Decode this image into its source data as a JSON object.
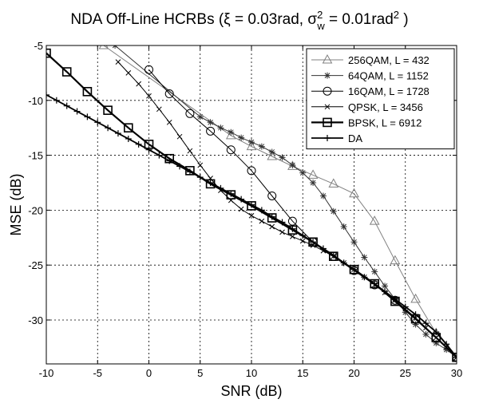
{
  "chart_data": {
    "type": "line",
    "title": {
      "main": "NDA Off-Line HCRBs (",
      "xi_symbol": "ξ",
      "xi_value": " = 0.03rad, ",
      "sigma_symbol": "σ",
      "sigma_sup": "2",
      "sigma_sub": "w",
      "sigma_value": " = 0.01rad",
      "unit_sup": "2",
      "close": " )"
    },
    "xlabel": "SNR (dB)",
    "ylabel": "MSE (dB)",
    "xlim": [
      -10,
      30
    ],
    "ylim": [
      -34,
      -5
    ],
    "xticks": [
      -10,
      -5,
      0,
      5,
      10,
      15,
      20,
      25,
      30
    ],
    "yticks": [
      -5,
      -10,
      -15,
      -20,
      -25,
      -30
    ],
    "grid": true,
    "legend_position": "top-right",
    "series": [
      {
        "name": "256QAM,  L = 432",
        "marker": "triangle",
        "color": "#808080",
        "x": [
          -4.4,
          8,
          10,
          12,
          14,
          16,
          18,
          20,
          22,
          24,
          26,
          28,
          30
        ],
        "y": [
          -5,
          -13.2,
          -14.2,
          -15.1,
          -16.0,
          -16.8,
          -17.6,
          -18.5,
          -21.0,
          -24.6,
          -28.1,
          -31.2,
          -33.4
        ]
      },
      {
        "name": "64QAM,  L = 1152",
        "marker": "star",
        "color": "#333333",
        "x": [
          -3.3,
          5,
          6,
          7,
          8,
          9,
          10,
          11,
          12,
          13,
          14,
          15,
          16,
          17,
          18,
          19,
          20,
          21,
          22,
          23,
          24,
          25,
          26,
          27,
          28,
          29,
          30
        ],
        "y": [
          -5,
          -11.5,
          -12.0,
          -12.5,
          -12.9,
          -13.4,
          -13.8,
          -14.2,
          -14.7,
          -15.2,
          -15.9,
          -16.6,
          -17.5,
          -18.7,
          -20.1,
          -21.5,
          -22.9,
          -24.3,
          -25.6,
          -26.9,
          -28.1,
          -29.3,
          -30.4,
          -31.3,
          -32.1,
          -32.7,
          -33.4
        ]
      },
      {
        "name": "16QAM,  L = 1728",
        "marker": "circle",
        "color": "#000000",
        "x": [
          0,
          2,
          4,
          6,
          8,
          10,
          12,
          14,
          16,
          18,
          20,
          22,
          24,
          26,
          28,
          30
        ],
        "y": [
          -7.2,
          -9.4,
          -11.2,
          -12.8,
          -14.5,
          -16.4,
          -18.7,
          -21.0,
          -22.9,
          -24.2,
          -25.5,
          -26.8,
          -28.2,
          -29.9,
          -31.6,
          -33.4
        ]
      },
      {
        "name": "QPSK,  L = 3456",
        "marker": "x",
        "color": "#000000",
        "x": [
          -3,
          -2,
          -1,
          0,
          1,
          2,
          3,
          4,
          5,
          6,
          7,
          8,
          9,
          10,
          11,
          12,
          13,
          14,
          15,
          16,
          17,
          18,
          19,
          20,
          21,
          22,
          23,
          24,
          25,
          26,
          27,
          28,
          29,
          30
        ],
        "y": [
          -6.5,
          -7.5,
          -8.5,
          -9.6,
          -10.8,
          -12.0,
          -13.3,
          -14.6,
          -15.9,
          -17.1,
          -18.2,
          -19.1,
          -19.9,
          -20.5,
          -21.0,
          -21.5,
          -22.0,
          -22.4,
          -22.8,
          -23.2,
          -23.7,
          -24.2,
          -24.8,
          -25.4,
          -26.1,
          -26.8,
          -27.5,
          -28.2,
          -29.0,
          -29.8,
          -30.7,
          -31.6,
          -32.5,
          -33.4
        ]
      },
      {
        "name": "BPSK,  L = 6912",
        "marker": "square",
        "color": "#000000",
        "x": [
          -10,
          -8,
          -6,
          -4,
          -2,
          0,
          2,
          4,
          6,
          8,
          10,
          12,
          14,
          16,
          18,
          20,
          22,
          24,
          26,
          28,
          30
        ],
        "y": [
          -5.7,
          -7.4,
          -9.2,
          -10.9,
          -12.5,
          -14.0,
          -15.3,
          -16.4,
          -17.6,
          -18.6,
          -19.6,
          -20.7,
          -21.8,
          -22.9,
          -24.2,
          -25.4,
          -26.7,
          -28.3,
          -29.9,
          -31.6,
          -33.4
        ]
      },
      {
        "name": "DA",
        "marker": "plus",
        "color": "#000000",
        "x": [
          -10,
          -9,
          -8,
          -7,
          -6,
          -5,
          -4,
          -3,
          -2,
          -1,
          0,
          1,
          2,
          3,
          4,
          5,
          6,
          7,
          8,
          9,
          10,
          11,
          12,
          13,
          14,
          15,
          16,
          17,
          18,
          19,
          20,
          21,
          22,
          23,
          24,
          25,
          26,
          27,
          28,
          29,
          30
        ],
        "y": [
          -9.5,
          -10.0,
          -10.5,
          -11.0,
          -11.5,
          -12.0,
          -12.5,
          -13.0,
          -13.5,
          -14.0,
          -14.5,
          -15.0,
          -15.5,
          -16.0,
          -16.5,
          -17.0,
          -17.5,
          -18.0,
          -18.5,
          -19.0,
          -19.5,
          -20.0,
          -20.6,
          -21.1,
          -21.7,
          -22.3,
          -22.9,
          -23.5,
          -24.1,
          -24.8,
          -25.4,
          -26.1,
          -26.7,
          -27.4,
          -28.1,
          -28.8,
          -29.5,
          -30.3,
          -31.1,
          -32.2,
          -33.4
        ]
      }
    ]
  }
}
